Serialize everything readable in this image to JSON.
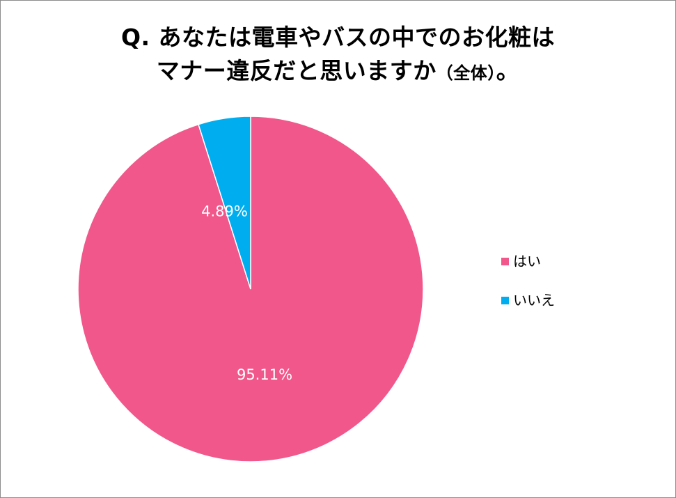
{
  "title": {
    "line1": "Q. あなたは電車やバスの中でのお化粧は",
    "line2_main": "マナー違反だと思いますか",
    "line2_paren": "（全体）",
    "line2_end": "。"
  },
  "chart_data": {
    "type": "pie",
    "title": "Q. あなたは電車やバスの中でのお化粧はマナー違反だと思いますか（全体）。",
    "slices": [
      {
        "name": "はい",
        "value": 95.11,
        "label": "95.11%",
        "color": "#f1578a"
      },
      {
        "name": "いいえ",
        "value": 4.89,
        "label": "4.89%",
        "color": "#00aeef"
      }
    ],
    "start_angle": "12 o'clock",
    "direction": "clockwise",
    "legend": {
      "position": "right"
    }
  },
  "colors": {
    "border": "#8c8c8c",
    "background": "#ffffff",
    "slice_edge": "#ffffff"
  }
}
